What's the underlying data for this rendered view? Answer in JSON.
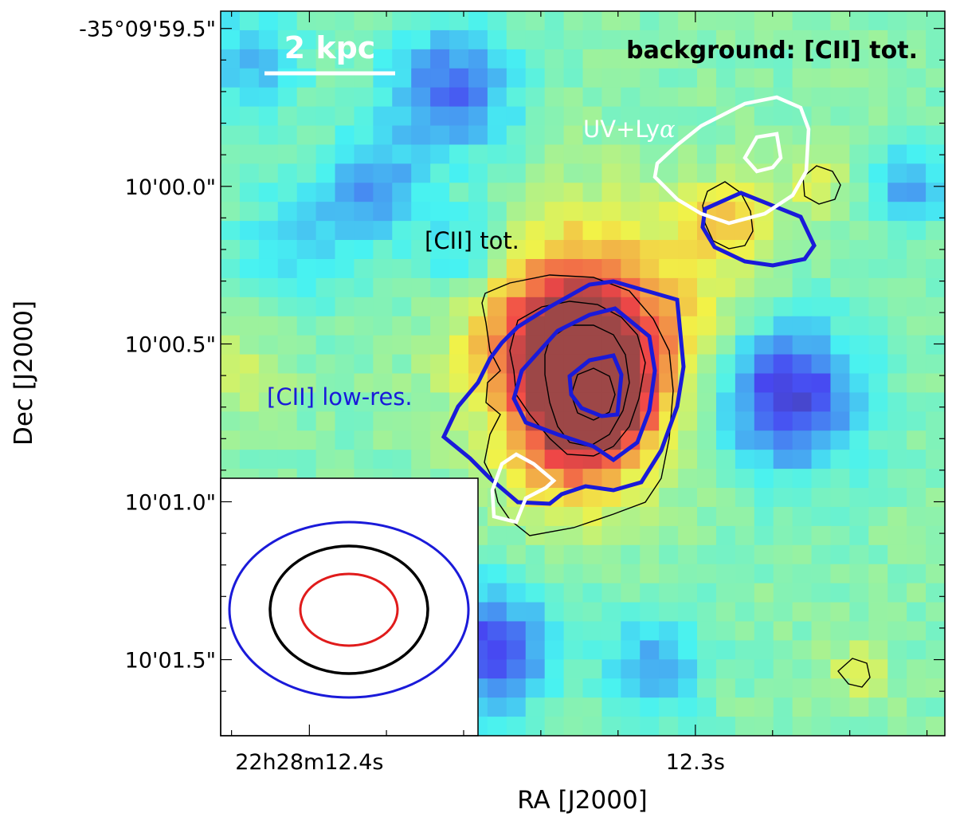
{
  "chart_data": {
    "type": "heatmap",
    "title": "",
    "xlabel": "RA [J2000]",
    "ylabel": "Dec [J2000]",
    "x_ticks": [
      {
        "label": "22h28m12.4s",
        "pos": 0.1225
      },
      {
        "label": "12.3s",
        "pos": 0.6555
      }
    ],
    "y_ticks": [
      {
        "label": "-35°09'59.5\"",
        "pos": 0.0239
      },
      {
        "label": "10'00.0\"",
        "pos": 0.2418
      },
      {
        "label": "10'00.5\"",
        "pos": 0.4593
      },
      {
        "label": "10'01.0\"",
        "pos": 0.6771
      },
      {
        "label": "10'01.5\"",
        "pos": 0.895
      }
    ],
    "annotations": {
      "background": "background: [CII] tot.",
      "scale_bar": "2 kpc",
      "cii_tot": "[CII] tot.",
      "cii_lowres": "[CII] low-res.",
      "uv_lya_prefix": "UV+Ly",
      "uv_lya_symbol": "α"
    },
    "series": [
      {
        "name": "[CII] tot.",
        "color": "#000000"
      },
      {
        "name": "[CII] low-res.",
        "color": "#1a1ad9"
      },
      {
        "name": "UV+Lyα",
        "color": "#ffffff"
      }
    ],
    "beams": [
      {
        "name": "[CII] low-res. beam",
        "color": "#1a1ad9"
      },
      {
        "name": "[CII] tot. beam",
        "color": "#000000"
      },
      {
        "name": "UV+Lyα beam",
        "color": "#e01b1b"
      }
    ],
    "colormap": "jet"
  }
}
